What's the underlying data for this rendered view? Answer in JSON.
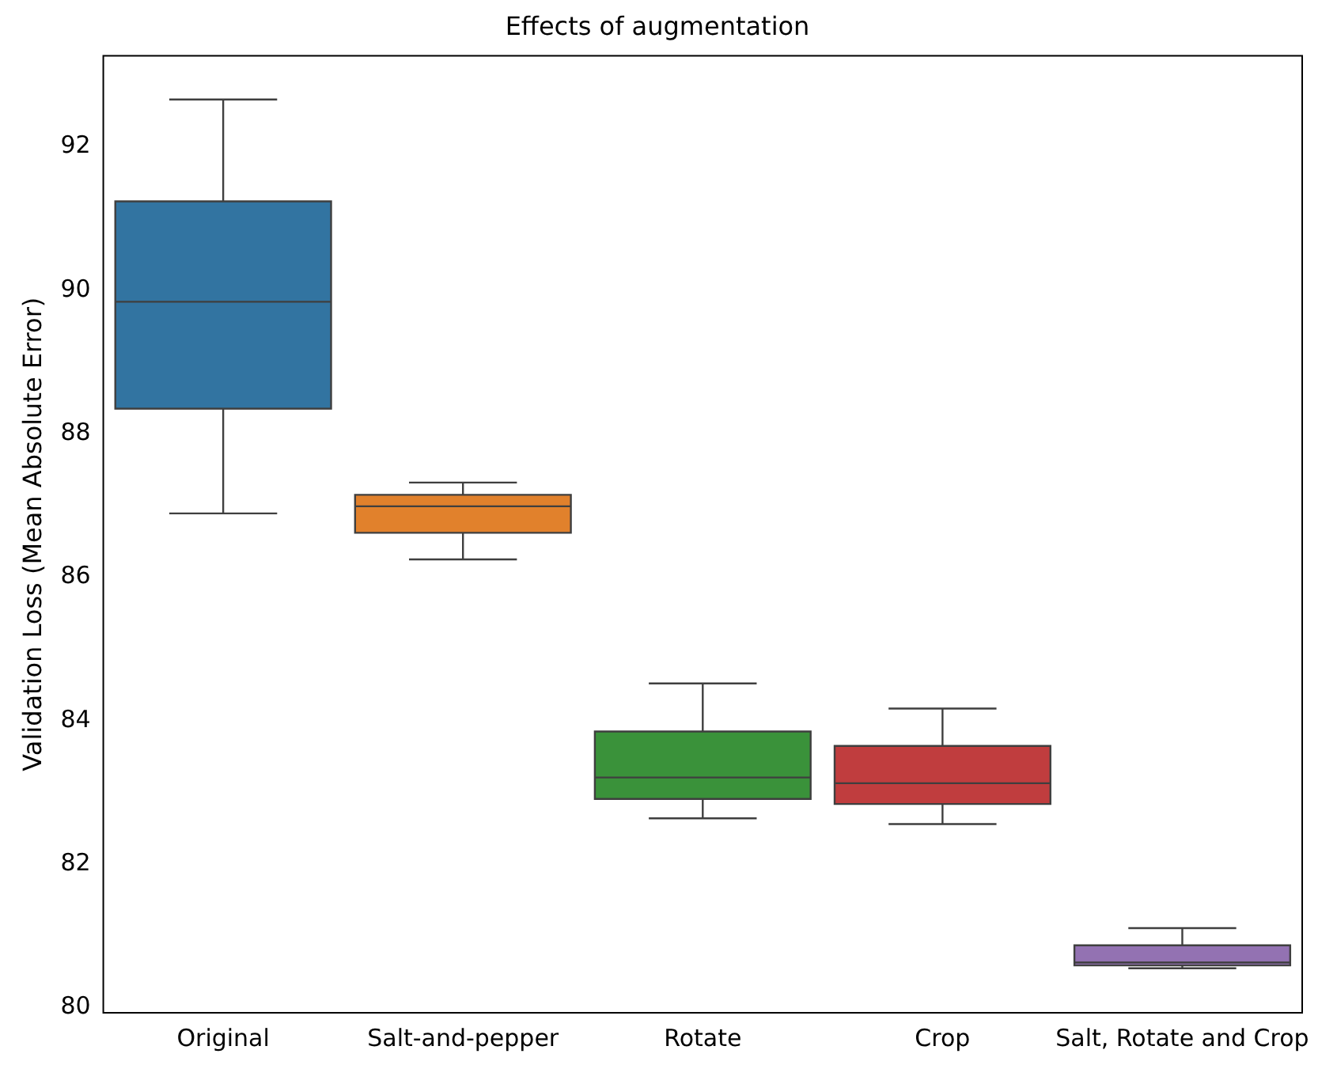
{
  "chart_data": {
    "type": "box",
    "title": "Effects of augmentation",
    "ylabel": "Validation Loss (Mean Absolute Error)",
    "categories": [
      "Original",
      "Salt-and-pepper",
      "Rotate",
      "Crop",
      "Salt, Rotate and Crop"
    ],
    "boxes": [
      {
        "low": 86.89,
        "q1": 88.35,
        "median": 89.84,
        "q3": 91.24,
        "high": 92.66
      },
      {
        "low": 86.25,
        "q1": 86.62,
        "median": 86.99,
        "q3": 87.15,
        "high": 87.32
      },
      {
        "low": 82.64,
        "q1": 82.91,
        "median": 83.21,
        "q3": 83.85,
        "high": 84.52
      },
      {
        "low": 82.56,
        "q1": 82.84,
        "median": 83.13,
        "q3": 83.65,
        "high": 84.17
      },
      {
        "low": 80.55,
        "q1": 80.59,
        "median": 80.63,
        "q3": 80.87,
        "high": 81.11
      }
    ],
    "colors": [
      "#3274a1",
      "#e1812c",
      "#3a923a",
      "#c03d3e",
      "#9372b2"
    ],
    "ylim": [
      79.93,
      93.27
    ],
    "yticks": [
      80,
      82,
      84,
      86,
      88,
      90,
      92
    ]
  }
}
